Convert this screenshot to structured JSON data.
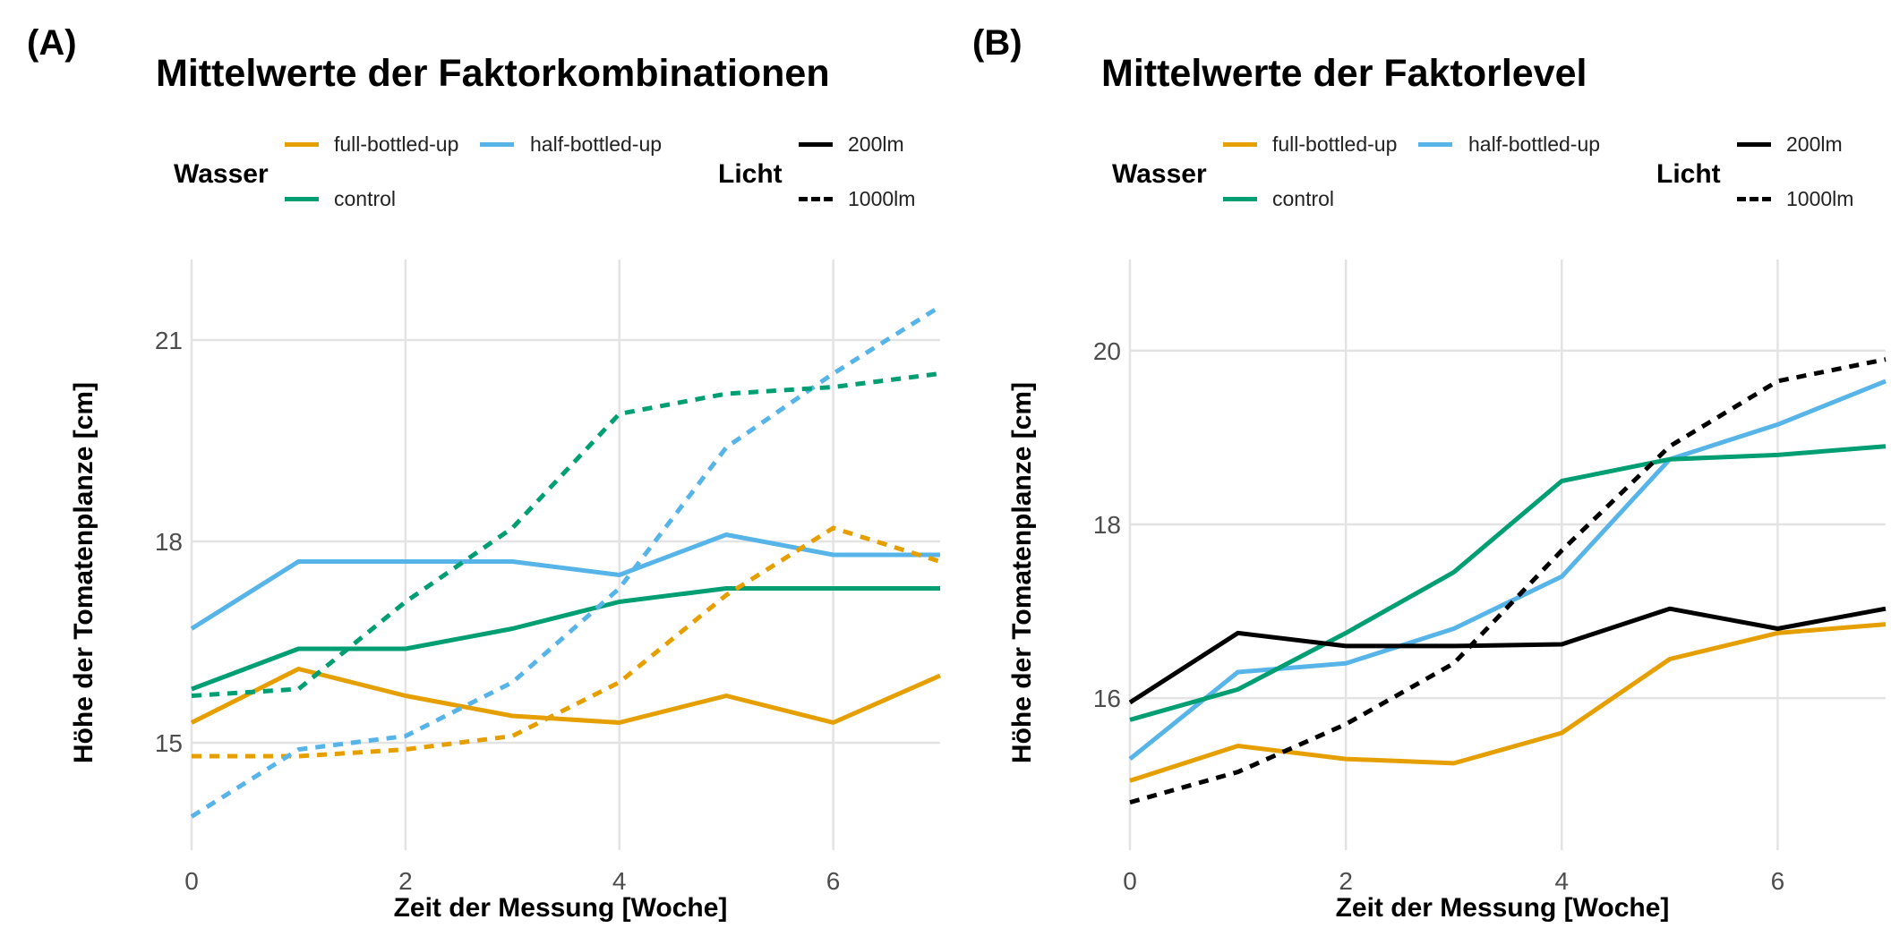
{
  "panels": [
    {
      "tag": "(A)",
      "title": "Mittelwerte der Faktorkombinationen",
      "legend": {
        "water_title": "Wasser",
        "light_title": "Licht",
        "water_items": [
          {
            "label": "full-bottled-up",
            "color": "#E69F00"
          },
          {
            "label": "half-bottled-up",
            "color": "#56B4E9"
          },
          {
            "label": "control",
            "color": "#009E73"
          }
        ],
        "light_items": [
          {
            "label": "200lm",
            "style": "solid"
          },
          {
            "label": "1000lm",
            "style": "dashed"
          }
        ]
      }
    },
    {
      "tag": "(B)",
      "title": "Mittelwerte der Faktorlevel",
      "legend": {
        "water_title": "Wasser",
        "light_title": "Licht",
        "water_items": [
          {
            "label": "full-bottled-up",
            "color": "#E69F00"
          },
          {
            "label": "half-bottled-up",
            "color": "#56B4E9"
          },
          {
            "label": "control",
            "color": "#009E73"
          }
        ],
        "light_items": [
          {
            "label": "200lm",
            "style": "solid"
          },
          {
            "label": "1000lm",
            "style": "dashed"
          }
        ]
      }
    }
  ],
  "chart_data": [
    {
      "type": "line",
      "title": "Mittelwerte der Faktorkombinationen",
      "xlabel": "Zeit der Messung [Woche]",
      "ylabel": "Höhe der Tomatenplanze [cm]",
      "x": [
        0,
        1,
        2,
        3,
        4,
        5,
        6,
        7
      ],
      "xticks": [
        0,
        2,
        4,
        6
      ],
      "yticks": [
        15,
        18,
        21
      ],
      "xlim": [
        0,
        7
      ],
      "ylim": [
        13.4,
        22.2
      ],
      "grid": true,
      "legend_position": "top",
      "series": [
        {
          "name": "full-bottled-up, 200lm",
          "color": "#E69F00",
          "dash": false,
          "values": [
            15.3,
            16.1,
            15.7,
            15.4,
            15.3,
            15.7,
            15.3,
            16.0
          ]
        },
        {
          "name": "half-bottled-up, 200lm",
          "color": "#56B4E9",
          "dash": false,
          "values": [
            16.7,
            17.7,
            17.7,
            17.7,
            17.5,
            18.1,
            17.8,
            17.8
          ]
        },
        {
          "name": "control, 200lm",
          "color": "#009E73",
          "dash": false,
          "values": [
            15.8,
            16.4,
            16.4,
            16.7,
            17.1,
            17.3,
            17.3,
            17.3
          ]
        },
        {
          "name": "full-bottled-up, 1000lm",
          "color": "#E69F00",
          "dash": true,
          "values": [
            14.8,
            14.8,
            14.9,
            15.1,
            15.9,
            17.2,
            18.2,
            17.7
          ]
        },
        {
          "name": "half-bottled-up, 1000lm",
          "color": "#56B4E9",
          "dash": true,
          "values": [
            13.9,
            14.9,
            15.1,
            15.9,
            17.3,
            19.4,
            20.5,
            21.5
          ]
        },
        {
          "name": "control, 1000lm",
          "color": "#009E73",
          "dash": true,
          "values": [
            15.7,
            15.8,
            17.1,
            18.2,
            19.9,
            20.2,
            20.3,
            20.5
          ]
        }
      ]
    },
    {
      "type": "line",
      "title": "Mittelwerte der Faktorlevel",
      "xlabel": "Zeit der Messung [Woche]",
      "ylabel": "Höhe der Tomatenplanze [cm]",
      "x": [
        0,
        1,
        2,
        3,
        4,
        5,
        6,
        7
      ],
      "xticks": [
        0,
        2,
        4,
        6
      ],
      "yticks": [
        16,
        18,
        20
      ],
      "xlim": [
        0,
        7
      ],
      "ylim": [
        14.25,
        21.05
      ],
      "grid": true,
      "legend_position": "top",
      "series": [
        {
          "name": "full-bottled-up",
          "color": "#E69F00",
          "dash": false,
          "values": [
            15.05,
            15.45,
            15.3,
            15.25,
            15.6,
            16.45,
            16.75,
            16.85
          ]
        },
        {
          "name": "half-bottled-up",
          "color": "#56B4E9",
          "dash": false,
          "values": [
            15.3,
            16.3,
            16.4,
            16.8,
            17.4,
            18.75,
            19.15,
            19.65
          ]
        },
        {
          "name": "control",
          "color": "#009E73",
          "dash": false,
          "values": [
            15.75,
            16.1,
            16.75,
            17.45,
            18.5,
            18.75,
            18.8,
            18.9
          ]
        },
        {
          "name": "200lm",
          "color": "#000000",
          "dash": false,
          "values": [
            15.95,
            16.75,
            16.6,
            16.6,
            16.62,
            17.03,
            16.8,
            17.03
          ]
        },
        {
          "name": "1000lm",
          "color": "#000000",
          "dash": true,
          "values": [
            14.8,
            15.15,
            15.7,
            16.4,
            17.7,
            18.9,
            19.65,
            19.9
          ]
        }
      ]
    }
  ]
}
